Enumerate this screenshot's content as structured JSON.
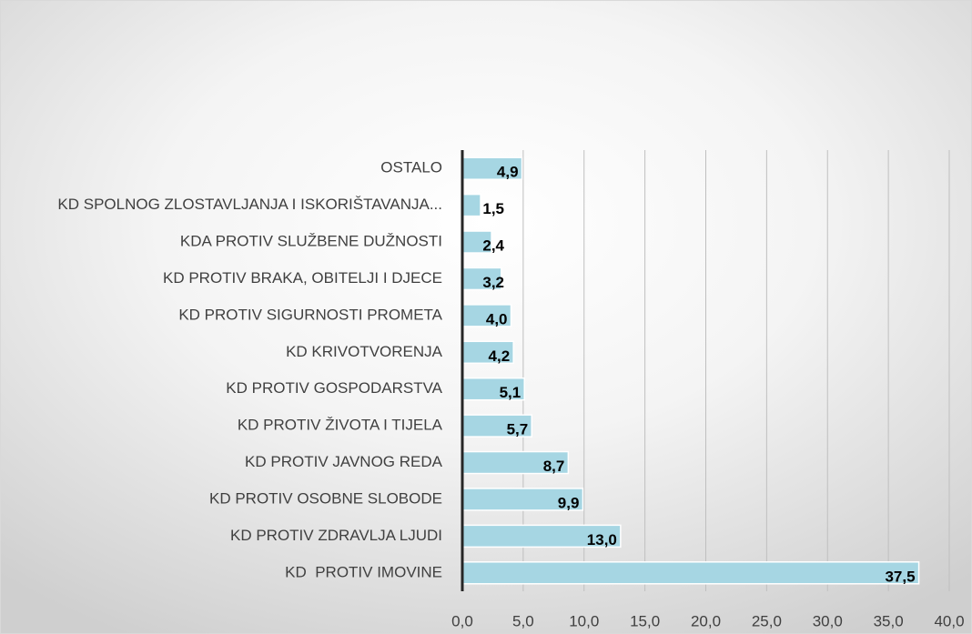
{
  "chart_data": {
    "type": "barh",
    "categories": [
      "OSTALO",
      "KD SPOLNOG ZLOSTAVLJANJA I ISKORIŠTAVANJA...",
      "KDA PROTIV SLUŽBENE DUŽNOSTI",
      "KD PROTIV BRAKA, OBITELJI I DJECE",
      "KD PROTIV SIGURNOSTI PROMETA",
      "KD KRIVOTVORENJA",
      "KD PROTIV GOSPODARSTVA",
      "KD PROTIV ŽIVOTA I TIJELA",
      "KD PROTIV JAVNOG REDA",
      "KD PROTIV OSOBNE SLOBODE",
      "KD PROTIV ZDRAVLJA LJUDI",
      "KD  PROTIV IMOVINE"
    ],
    "values": [
      4.9,
      1.5,
      2.4,
      3.2,
      4.0,
      4.2,
      5.1,
      5.7,
      8.7,
      9.9,
      13.0,
      37.5
    ],
    "value_labels": [
      "4,9",
      "1,5",
      "2,4",
      "3,2",
      "4,0",
      "4,2",
      "5,1",
      "5,7",
      "8,7",
      "9,9",
      "13,0",
      "37,5"
    ],
    "color": "#a6d6e3",
    "xlim": [
      0,
      40
    ],
    "xticks": [
      {
        "value": 0,
        "label": "0,0"
      },
      {
        "value": 5,
        "label": "5,0"
      },
      {
        "value": 10,
        "label": "10,0"
      },
      {
        "value": 15,
        "label": "15,0"
      },
      {
        "value": 20,
        "label": "20,0"
      },
      {
        "value": 25,
        "label": "25,0"
      },
      {
        "value": 30,
        "label": "30,0"
      },
      {
        "value": 35,
        "label": "35,0"
      },
      {
        "value": 40,
        "label": "40,0"
      }
    ],
    "grid": true
  }
}
